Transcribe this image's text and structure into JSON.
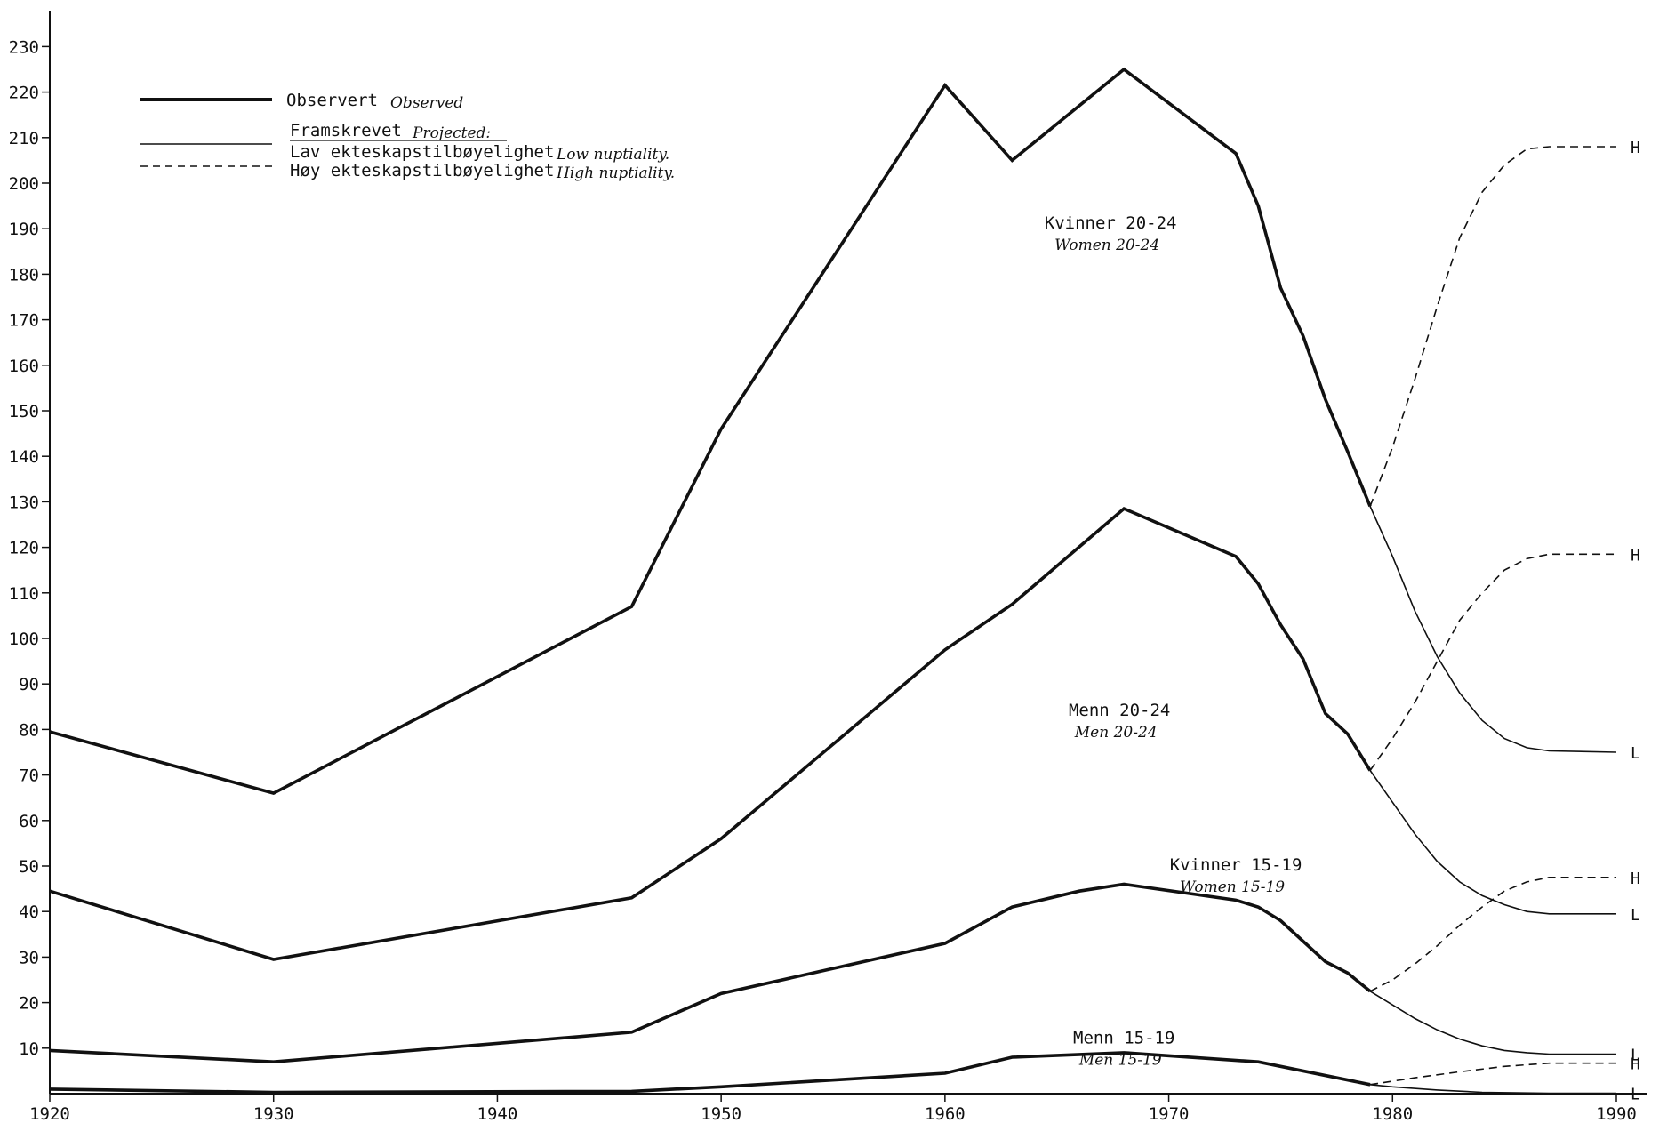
{
  "chart_data": {
    "type": "line",
    "title": "",
    "xlabel": "",
    "ylabel": "",
    "xlim": [
      1920,
      1990
    ],
    "ylim": [
      0,
      240
    ],
    "x_ticks": [
      1920,
      1930,
      1940,
      1950,
      1960,
      1970,
      1980,
      1990
    ],
    "y_ticks": [
      10,
      20,
      30,
      40,
      50,
      60,
      70,
      80,
      90,
      100,
      110,
      120,
      130,
      140,
      150,
      160,
      170,
      180,
      190,
      200,
      210,
      220,
      230
    ],
    "legend": {
      "position": "top-left",
      "observed": {
        "label": "Observert",
        "translation": "Observed"
      },
      "projected": {
        "label": "Framskrevet",
        "translation": "Projected:"
      },
      "low": {
        "label": "Lav ekteskapstilbøyelighet",
        "translation": "Low nuptiality."
      },
      "high": {
        "label": "Høy ekteskapstilbøyelighet",
        "translation": "High nuptiality."
      }
    },
    "groups": [
      {
        "label": "Kvinner 20-24",
        "label_translation": "Women 20-24",
        "label_anchor": [
          1967.4,
          190
        ],
        "observed": [
          [
            1920,
            79.5
          ],
          [
            1930,
            66
          ],
          [
            1946,
            107
          ],
          [
            1950,
            146
          ],
          [
            1960,
            221.5
          ],
          [
            1963,
            205
          ],
          [
            1968,
            225
          ],
          [
            1973,
            206.5
          ],
          [
            1974,
            195
          ],
          [
            1975,
            177
          ],
          [
            1976,
            166.5
          ],
          [
            1977,
            152.5
          ],
          [
            1978,
            141
          ],
          [
            1979,
            129
          ]
        ],
        "low": [
          [
            1979,
            129
          ],
          [
            1980,
            118
          ],
          [
            1981,
            106
          ],
          [
            1982,
            96
          ],
          [
            1983,
            88
          ],
          [
            1984,
            82
          ],
          [
            1985,
            78
          ],
          [
            1986,
            76
          ],
          [
            1987,
            75.3
          ],
          [
            1990,
            75
          ]
        ],
        "high": [
          [
            1979,
            129
          ],
          [
            1980,
            142
          ],
          [
            1981,
            157
          ],
          [
            1982,
            173
          ],
          [
            1983,
            188
          ],
          [
            1984,
            198
          ],
          [
            1985,
            204
          ],
          [
            1986,
            207.5
          ],
          [
            1987,
            208
          ],
          [
            1990,
            208
          ]
        ],
        "low_end_label": "L",
        "high_end_label": "H"
      },
      {
        "label": "Menn 20-24",
        "label_translation": "Men 20-24",
        "label_anchor": [
          1967.8,
          83
        ],
        "observed": [
          [
            1920,
            44.5
          ],
          [
            1930,
            29.5
          ],
          [
            1946,
            43
          ],
          [
            1950,
            56
          ],
          [
            1960,
            97.5
          ],
          [
            1963,
            107.5
          ],
          [
            1968,
            128.5
          ],
          [
            1973,
            118
          ],
          [
            1974,
            112
          ],
          [
            1975,
            103
          ],
          [
            1976,
            95.5
          ],
          [
            1977,
            83.5
          ],
          [
            1978,
            79
          ],
          [
            1979,
            71
          ]
        ],
        "low": [
          [
            1979,
            71
          ],
          [
            1980,
            64
          ],
          [
            1981,
            57
          ],
          [
            1982,
            51
          ],
          [
            1983,
            46.5
          ],
          [
            1984,
            43.5
          ],
          [
            1985,
            41.5
          ],
          [
            1986,
            40
          ],
          [
            1987,
            39.5
          ],
          [
            1990,
            39.5
          ]
        ],
        "high": [
          [
            1979,
            71
          ],
          [
            1980,
            78
          ],
          [
            1981,
            86
          ],
          [
            1982,
            95
          ],
          [
            1983,
            104
          ],
          [
            1984,
            110
          ],
          [
            1985,
            115
          ],
          [
            1986,
            117.5
          ],
          [
            1987,
            118.5
          ],
          [
            1990,
            118.5
          ]
        ],
        "low_end_label": "L",
        "high_end_label": "H"
      },
      {
        "label": "Kvinner 15-19",
        "label_translation": "Women 15-19",
        "label_anchor": [
          1973,
          49
        ],
        "observed": [
          [
            1920,
            9.5
          ],
          [
            1930,
            7
          ],
          [
            1946,
            13.5
          ],
          [
            1950,
            22
          ],
          [
            1960,
            33
          ],
          [
            1963,
            41
          ],
          [
            1966,
            44.5
          ],
          [
            1968,
            46
          ],
          [
            1973,
            42.5
          ],
          [
            1974,
            41
          ],
          [
            1975,
            38
          ],
          [
            1976,
            33.5
          ],
          [
            1977,
            29
          ],
          [
            1978,
            26.5
          ],
          [
            1979,
            22.5
          ]
        ],
        "low": [
          [
            1979,
            22.5
          ],
          [
            1980,
            19.5
          ],
          [
            1981,
            16.5
          ],
          [
            1982,
            14
          ],
          [
            1983,
            12
          ],
          [
            1984,
            10.5
          ],
          [
            1985,
            9.5
          ],
          [
            1986,
            9
          ],
          [
            1987,
            8.7
          ],
          [
            1990,
            8.7
          ]
        ],
        "high": [
          [
            1979,
            22.5
          ],
          [
            1980,
            25
          ],
          [
            1981,
            28.5
          ],
          [
            1982,
            32.5
          ],
          [
            1983,
            37
          ],
          [
            1984,
            41
          ],
          [
            1985,
            44.5
          ],
          [
            1986,
            46.5
          ],
          [
            1987,
            47.5
          ],
          [
            1990,
            47.5
          ]
        ],
        "low_end_label": "L",
        "high_end_label": "H"
      },
      {
        "label": "Menn 15-19",
        "label_translation": "Men 15-19",
        "label_anchor": [
          1968,
          11
        ],
        "observed": [
          [
            1920,
            1
          ],
          [
            1930,
            0.3
          ],
          [
            1946,
            0.5
          ],
          [
            1950,
            1.5
          ],
          [
            1960,
            4.5
          ],
          [
            1963,
            8
          ],
          [
            1968,
            9
          ],
          [
            1974,
            7
          ],
          [
            1979,
            2
          ]
        ],
        "low": [
          [
            1979,
            2
          ],
          [
            1980,
            1.5
          ],
          [
            1982,
            0.8
          ],
          [
            1984,
            0.3
          ],
          [
            1987,
            0.1
          ],
          [
            1990,
            0.1
          ]
        ],
        "high": [
          [
            1979,
            2
          ],
          [
            1981,
            3.5
          ],
          [
            1983,
            4.8
          ],
          [
            1985,
            6
          ],
          [
            1987,
            6.7
          ],
          [
            1990,
            6.7
          ]
        ],
        "low_end_label": "L",
        "high_end_label": "H"
      }
    ]
  }
}
